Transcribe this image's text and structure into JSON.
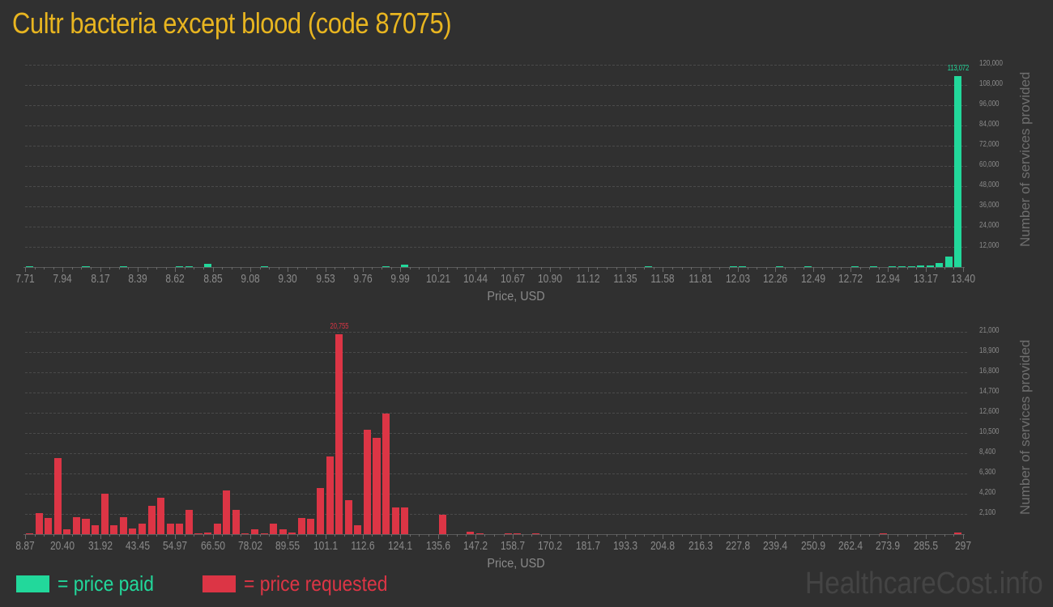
{
  "page": {
    "title": "Cultr bacteria except blood (code 87075)",
    "watermark": "HealthcareCost.info"
  },
  "legend": {
    "items": [
      {
        "label": "= price paid",
        "color": "#22d89b"
      },
      {
        "label": "= price requested",
        "color": "#dc3545"
      }
    ]
  },
  "chart_data": [
    {
      "type": "bar",
      "title": "Price paid distribution",
      "xlabel": "Price, USD",
      "ylabel": "Number of services provided",
      "color": "#22d89b",
      "x_tick_labels": [
        "7.71",
        "7.94",
        "8.17",
        "8.39",
        "8.62",
        "8.85",
        "9.08",
        "9.30",
        "9.53",
        "9.76",
        "9.99",
        "10.21",
        "10.44",
        "10.67",
        "10.90",
        "11.12",
        "11.35",
        "11.58",
        "11.81",
        "12.03",
        "12.26",
        "12.49",
        "12.72",
        "12.94",
        "13.17",
        "13.40"
      ],
      "y_tick_labels": [
        "12,000",
        "24,000",
        "36,000",
        "48,000",
        "60,000",
        "72,000",
        "84,000",
        "96,000",
        "108,000",
        "120,000"
      ],
      "ylim": [
        0,
        120000
      ],
      "grid": true,
      "peak_label": "113,072",
      "bin_count": 100,
      "bins": [
        {
          "i": 0,
          "v": 250
        },
        {
          "i": 6,
          "v": 250
        },
        {
          "i": 10,
          "v": 700
        },
        {
          "i": 16,
          "v": 250
        },
        {
          "i": 17,
          "v": 250
        },
        {
          "i": 19,
          "v": 1700
        },
        {
          "i": 25,
          "v": 250
        },
        {
          "i": 38,
          "v": 250
        },
        {
          "i": 40,
          "v": 1400
        },
        {
          "i": 66,
          "v": 250
        },
        {
          "i": 75,
          "v": 250
        },
        {
          "i": 76,
          "v": 250
        },
        {
          "i": 80,
          "v": 250
        },
        {
          "i": 83,
          "v": 250
        },
        {
          "i": 88,
          "v": 250
        },
        {
          "i": 90,
          "v": 250
        },
        {
          "i": 92,
          "v": 250
        },
        {
          "i": 93,
          "v": 250
        },
        {
          "i": 94,
          "v": 250
        },
        {
          "i": 95,
          "v": 900
        },
        {
          "i": 96,
          "v": 900
        },
        {
          "i": 97,
          "v": 2200
        },
        {
          "i": 98,
          "v": 6200
        },
        {
          "i": 99,
          "v": 113072
        }
      ]
    },
    {
      "type": "bar",
      "title": "Price requested distribution",
      "xlabel": "Price, USD",
      "ylabel": "Number of services provided",
      "color": "#dc3545",
      "x_tick_labels": [
        "8.87",
        "20.40",
        "31.92",
        "43.45",
        "54.97",
        "66.50",
        "78.02",
        "89.55",
        "101.1",
        "112.6",
        "124.1",
        "135.6",
        "147.2",
        "158.7",
        "170.2",
        "181.7",
        "193.3",
        "204.8",
        "216.3",
        "227.8",
        "239.4",
        "250.9",
        "262.4",
        "273.9",
        "285.5",
        "297"
      ],
      "y_tick_labels": [
        "2,100",
        "4,200",
        "6,300",
        "8,400",
        "10,500",
        "12,600",
        "14,700",
        "16,800",
        "18,900",
        "21,000"
      ],
      "ylim": [
        0,
        21000
      ],
      "grid": true,
      "peak_label": "20,755",
      "bin_count": 100,
      "bins": [
        {
          "i": 0,
          "v": 100
        },
        {
          "i": 1,
          "v": 2200
        },
        {
          "i": 2,
          "v": 1700
        },
        {
          "i": 3,
          "v": 7900
        },
        {
          "i": 4,
          "v": 500
        },
        {
          "i": 5,
          "v": 1800
        },
        {
          "i": 6,
          "v": 1600
        },
        {
          "i": 7,
          "v": 900
        },
        {
          "i": 8,
          "v": 4200
        },
        {
          "i": 9,
          "v": 900
        },
        {
          "i": 10,
          "v": 1800
        },
        {
          "i": 11,
          "v": 600
        },
        {
          "i": 12,
          "v": 1100
        },
        {
          "i": 13,
          "v": 2900
        },
        {
          "i": 14,
          "v": 3800
        },
        {
          "i": 15,
          "v": 1100
        },
        {
          "i": 16,
          "v": 1100
        },
        {
          "i": 17,
          "v": 2500
        },
        {
          "i": 18,
          "v": 60
        },
        {
          "i": 19,
          "v": 200
        },
        {
          "i": 20,
          "v": 1100
        },
        {
          "i": 21,
          "v": 4500
        },
        {
          "i": 22,
          "v": 2500
        },
        {
          "i": 23,
          "v": 100
        },
        {
          "i": 24,
          "v": 500
        },
        {
          "i": 25,
          "v": 60
        },
        {
          "i": 26,
          "v": 1100
        },
        {
          "i": 27,
          "v": 500
        },
        {
          "i": 28,
          "v": 200
        },
        {
          "i": 29,
          "v": 1700
        },
        {
          "i": 30,
          "v": 1600
        },
        {
          "i": 31,
          "v": 4800
        },
        {
          "i": 32,
          "v": 8100
        },
        {
          "i": 33,
          "v": 20755
        },
        {
          "i": 34,
          "v": 3500
        },
        {
          "i": 35,
          "v": 900
        },
        {
          "i": 36,
          "v": 10800
        },
        {
          "i": 37,
          "v": 10000
        },
        {
          "i": 38,
          "v": 12500
        },
        {
          "i": 39,
          "v": 2800
        },
        {
          "i": 40,
          "v": 2800
        },
        {
          "i": 44,
          "v": 2000
        },
        {
          "i": 47,
          "v": 250
        },
        {
          "i": 48,
          "v": 60
        },
        {
          "i": 51,
          "v": 60
        },
        {
          "i": 52,
          "v": 60
        },
        {
          "i": 54,
          "v": 60
        },
        {
          "i": 91,
          "v": 60
        },
        {
          "i": 99,
          "v": 200
        }
      ]
    }
  ]
}
